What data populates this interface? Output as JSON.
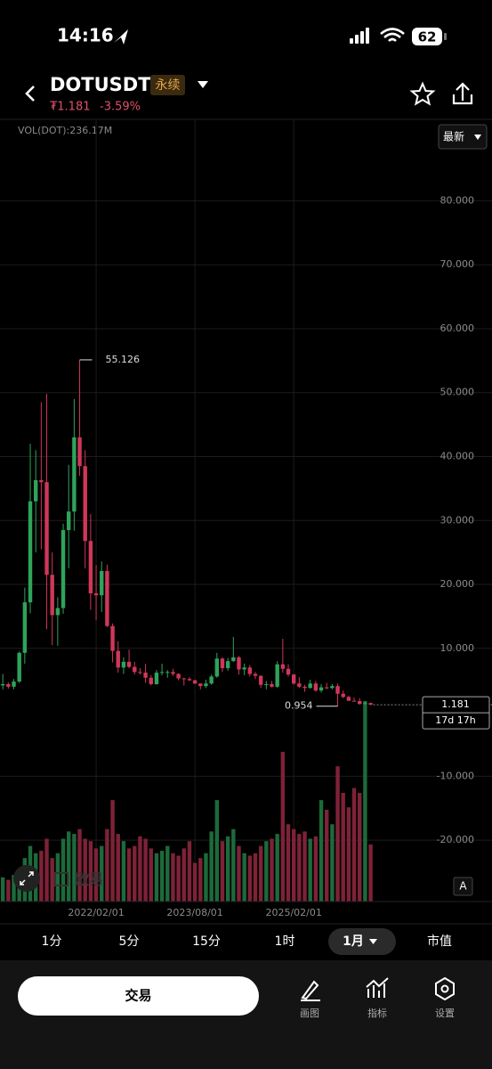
{
  "status_bar": {
    "time": "14:16",
    "battery": "62"
  },
  "header": {
    "symbol": "DOTUSDT",
    "tag": "永续",
    "price": "₮1.181",
    "change": "-3.59%"
  },
  "chart_data": {
    "type": "candlestick",
    "volume_label": "VOL(DOT):236.17M",
    "price_type": "最新",
    "countdown": "17d 17h",
    "up_color": "#2ea45a",
    "down_color": "#d0375a",
    "up_volume_color": "#1d6a3a",
    "down_volume_color": "#7e2238",
    "grid": true,
    "ylim": [
      -29.6,
      92.6
    ],
    "yticks": [
      {
        "value": 80,
        "label": "80.000"
      },
      {
        "value": 70,
        "label": "70.000"
      },
      {
        "value": 60,
        "label": "60.000"
      },
      {
        "value": 50,
        "label": "50.000"
      },
      {
        "value": 40,
        "label": "40.000"
      },
      {
        "value": 30,
        "label": "30.000"
      },
      {
        "value": 20,
        "label": "20.000"
      },
      {
        "value": 10,
        "label": "10.000"
      },
      {
        "value": -10,
        "label": "-10.000"
      },
      {
        "value": -20,
        "label": "-20.000"
      }
    ],
    "categories": [
      null,
      null,
      null,
      null,
      null,
      null,
      null,
      null,
      null,
      null,
      null,
      null,
      null,
      null,
      null,
      null,
      null,
      null,
      "2022/02/01",
      null,
      null,
      null,
      null,
      null,
      null,
      null,
      null,
      null,
      null,
      null,
      null,
      null,
      null,
      null,
      null,
      null,
      "2023/08/01",
      null,
      null,
      null,
      null,
      null,
      null,
      null,
      null,
      null,
      null,
      null,
      null,
      null,
      null,
      null,
      null,
      null,
      "2025/02/01",
      null,
      null,
      null,
      null,
      null,
      null,
      null,
      null,
      null,
      null,
      null,
      null,
      null,
      null
    ],
    "candles": [
      [
        2.9,
        6.3,
        2.7,
        4.2
      ],
      [
        4.2,
        6.0,
        3.6,
        4.4
      ],
      [
        4.4,
        4.7,
        3.7,
        4.0
      ],
      [
        4.0,
        5.2,
        3.6,
        4.8
      ],
      [
        4.8,
        9.5,
        4.6,
        9.3
      ],
      [
        9.3,
        19.5,
        7.6,
        17.2
      ],
      [
        17.2,
        42.0,
        15.5,
        33.0
      ],
      [
        33.0,
        41.0,
        25.0,
        36.3
      ],
      [
        36.3,
        48.5,
        25.5,
        36.0
      ],
      [
        36.0,
        49.8,
        13.0,
        21.5
      ],
      [
        21.5,
        25.0,
        10.5,
        15.2
      ],
      [
        15.2,
        18.0,
        10.4,
        16.3
      ],
      [
        16.3,
        29.5,
        15.4,
        28.5
      ],
      [
        28.5,
        38.7,
        22.5,
        31.4
      ],
      [
        31.4,
        49.0,
        28.4,
        43.0
      ],
      [
        43.0,
        55.126,
        37.0,
        38.5
      ],
      [
        38.5,
        41.0,
        22.5,
        26.8
      ],
      [
        26.8,
        31.0,
        16.0,
        18.6
      ],
      [
        18.6,
        23.0,
        14.4,
        18.3
      ],
      [
        18.3,
        23.6,
        15.7,
        22.1
      ],
      [
        22.1,
        23.1,
        13.3,
        13.5
      ],
      [
        13.5,
        13.9,
        7.8,
        9.6
      ],
      [
        9.6,
        11.1,
        6.2,
        7.0
      ],
      [
        7.0,
        8.6,
        6.0,
        7.9
      ],
      [
        7.9,
        9.8,
        6.9,
        7.1
      ],
      [
        7.1,
        7.9,
        5.9,
        6.3
      ],
      [
        6.3,
        6.9,
        5.9,
        6.2
      ],
      [
        6.2,
        7.6,
        4.6,
        5.4
      ],
      [
        5.4,
        5.8,
        4.2,
        4.4
      ],
      [
        4.4,
        6.6,
        4.3,
        6.2
      ],
      [
        6.2,
        7.6,
        5.8,
        6.3
      ],
      [
        6.3,
        6.6,
        5.4,
        6.3
      ],
      [
        6.3,
        6.8,
        5.7,
        6.0
      ],
      [
        6.0,
        6.1,
        5.0,
        5.3
      ],
      [
        5.3,
        5.4,
        4.2,
        5.2
      ],
      [
        5.2,
        5.5,
        4.9,
        5.0
      ],
      [
        5.0,
        5.1,
        4.4,
        4.5
      ],
      [
        4.5,
        4.5,
        3.6,
        4.1
      ],
      [
        4.1,
        5.1,
        3.8,
        4.5
      ],
      [
        4.5,
        5.9,
        4.3,
        5.6
      ],
      [
        5.6,
        9.3,
        5.4,
        8.4
      ],
      [
        8.4,
        8.6,
        6.3,
        6.9
      ],
      [
        6.9,
        8.5,
        6.5,
        8.0
      ],
      [
        8.0,
        11.8,
        7.9,
        8.6
      ],
      [
        8.6,
        8.8,
        5.9,
        6.7
      ],
      [
        6.7,
        7.6,
        5.8,
        7.0
      ],
      [
        7.0,
        7.4,
        5.6,
        6.0
      ],
      [
        6.0,
        6.3,
        5.2,
        5.7
      ],
      [
        5.7,
        5.8,
        3.8,
        4.3
      ],
      [
        4.3,
        4.9,
        3.6,
        4.4
      ],
      [
        4.4,
        4.9,
        3.9,
        4.0
      ],
      [
        4.0,
        8.0,
        3.8,
        7.5
      ],
      [
        7.5,
        11.5,
        6.2,
        6.8
      ],
      [
        6.8,
        7.5,
        5.6,
        5.9
      ],
      [
        5.9,
        6.0,
        4.3,
        4.5
      ],
      [
        4.5,
        5.5,
        3.8,
        4.0
      ],
      [
        4.0,
        4.3,
        3.2,
        3.8
      ],
      [
        3.8,
        5.1,
        3.7,
        4.5
      ],
      [
        4.5,
        4.9,
        3.2,
        3.4
      ],
      [
        3.4,
        4.4,
        3.1,
        3.9
      ],
      [
        3.9,
        4.6,
        3.6,
        3.8
      ],
      [
        3.8,
        4.4,
        3.6,
        4.1
      ],
      [
        4.1,
        4.5,
        0.954,
        2.9
      ],
      [
        2.9,
        3.4,
        2.2,
        2.4
      ],
      [
        2.4,
        2.6,
        1.8,
        1.8
      ],
      [
        1.8,
        2.3,
        1.7,
        1.75
      ],
      [
        1.75,
        2.2,
        1.2,
        1.3
      ],
      [
        1.3,
        1.7,
        1.2,
        1.45
      ],
      [
        1.45,
        1.5,
        1.1,
        1.181
      ]
    ],
    "volumes": [
      80,
      100,
      90,
      110,
      130,
      180,
      230,
      200,
      210,
      260,
      180,
      200,
      260,
      290,
      280,
      300,
      260,
      250,
      220,
      230,
      300,
      420,
      280,
      250,
      220,
      230,
      270,
      260,
      220,
      200,
      210,
      230,
      200,
      190,
      220,
      250,
      160,
      180,
      200,
      290,
      420,
      250,
      270,
      300,
      230,
      200,
      190,
      200,
      230,
      250,
      260,
      280,
      620,
      320,
      300,
      280,
      290,
      260,
      270,
      420,
      380,
      320,
      560,
      450,
      390,
      470,
      450,
      830,
      236.17
    ]
  },
  "watermark": "欧易",
  "auto_label": "A",
  "timeframes": [
    "1分",
    "5分",
    "15分",
    "1时",
    "1月",
    "市值"
  ],
  "bottom_bar": {
    "trade": "交易",
    "tools": [
      "画图",
      "指标",
      "设置"
    ]
  }
}
